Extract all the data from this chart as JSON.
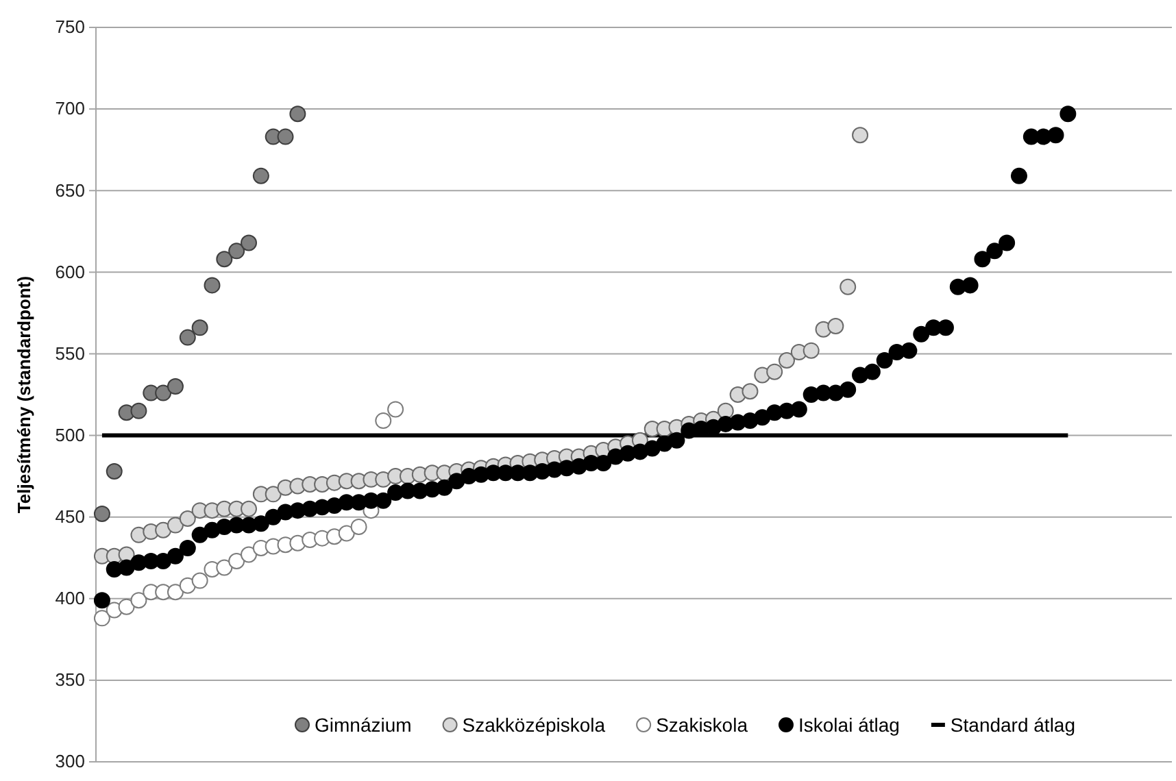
{
  "chart_data": {
    "type": "scatter",
    "ylabel": "Teljesítmény (standardpont)",
    "ylim": [
      300,
      750
    ],
    "yticks": [
      300,
      350,
      400,
      450,
      500,
      550,
      600,
      650,
      700,
      750
    ],
    "grid": "y",
    "legend": "bottom",
    "marker": "circle",
    "categories": [
      null,
      null,
      null,
      null,
      null,
      null,
      null,
      null,
      null,
      null,
      null,
      null,
      null,
      null,
      null,
      null,
      null,
      null,
      null,
      null,
      null,
      null,
      null,
      null,
      null,
      null,
      null,
      null,
      null,
      null,
      null,
      null,
      null,
      null,
      null,
      null,
      null,
      null,
      null,
      null,
      null,
      null,
      null,
      null,
      null,
      null,
      null,
      null,
      null,
      null,
      null,
      null,
      null,
      null,
      null,
      null,
      null,
      null,
      null,
      null,
      null,
      null,
      null,
      null,
      null,
      null,
      null,
      null,
      null,
      null,
      null,
      null,
      null,
      null,
      null,
      null,
      null,
      null,
      null,
      null,
      null,
      null,
      null,
      null,
      null,
      null,
      null,
      null
    ],
    "series": [
      {
        "name": "Gimnázium",
        "color": "#808080",
        "values": [
          452,
          478,
          514,
          515,
          526,
          526,
          530,
          560,
          566,
          592,
          608,
          613,
          618,
          659,
          683,
          683,
          697,
          null,
          null,
          null,
          null,
          null,
          null,
          null,
          null,
          null,
          null,
          null,
          null,
          null,
          null,
          null,
          null,
          null,
          null,
          null,
          null,
          null,
          null,
          null,
          null,
          null,
          null,
          null,
          null,
          null,
          null,
          null,
          null,
          null,
          null,
          null,
          null,
          null,
          null,
          null,
          null,
          null,
          null,
          null,
          null,
          null,
          null,
          null,
          null,
          null,
          null,
          null,
          null,
          null,
          null,
          null,
          null,
          null,
          null,
          null,
          null,
          null,
          null,
          null,
          null,
          null,
          null,
          null,
          null,
          null,
          null,
          null
        ]
      },
      {
        "name": "Szakközépiskola",
        "color": "#d9d9d9",
        "values": [
          426,
          426,
          427,
          439,
          441,
          442,
          445,
          449,
          454,
          454,
          455,
          455,
          455,
          464,
          464,
          468,
          469,
          470,
          470,
          471,
          472,
          472,
          473,
          473,
          475,
          475,
          476,
          477,
          477,
          478,
          479,
          480,
          481,
          482,
          483,
          484,
          485,
          486,
          487,
          487,
          489,
          491,
          493,
          495,
          497,
          504,
          504,
          505,
          507,
          509,
          510,
          515,
          525,
          527,
          537,
          539,
          546,
          551,
          552,
          565,
          567,
          591,
          684,
          null,
          null,
          null,
          null,
          null,
          null,
          null,
          null,
          null,
          null,
          null,
          null,
          null,
          null,
          null,
          null,
          null,
          null,
          null,
          null,
          null,
          null,
          null,
          null,
          null
        ]
      },
      {
        "name": "Szakiskola",
        "color": "#ffffff",
        "values": [
          388,
          393,
          395,
          399,
          404,
          404,
          404,
          408,
          411,
          418,
          419,
          423,
          427,
          431,
          432,
          433,
          434,
          436,
          437,
          438,
          440,
          444,
          454,
          509,
          516,
          null,
          null,
          null,
          null,
          null,
          null,
          null,
          null,
          null,
          null,
          null,
          null,
          null,
          null,
          null,
          null,
          null,
          null,
          null,
          null,
          null,
          null,
          null,
          null,
          null,
          null,
          null,
          null,
          null,
          null,
          null,
          null,
          null,
          null,
          null,
          null,
          null,
          null,
          null,
          null,
          null,
          null,
          null,
          null,
          null,
          null,
          null,
          null,
          null,
          null,
          null,
          null,
          null,
          null,
          null,
          null,
          null,
          null,
          null,
          null,
          null,
          null,
          null
        ]
      },
      {
        "name": "Iskolai átlag",
        "color": "#000000",
        "values": [
          399,
          418,
          419,
          422,
          423,
          423,
          426,
          431,
          439,
          442,
          444,
          445,
          445,
          446,
          450,
          453,
          454,
          455,
          456,
          457,
          459,
          459,
          460,
          460,
          465,
          466,
          466,
          467,
          468,
          472,
          475,
          476,
          477,
          477,
          477,
          477,
          478,
          479,
          480,
          481,
          483,
          483,
          487,
          489,
          490,
          492,
          495,
          497,
          503,
          504,
          505,
          507,
          508,
          509,
          511,
          514,
          515,
          516,
          525,
          526,
          526,
          528,
          537,
          539,
          546,
          551,
          552,
          562,
          566,
          566,
          591,
          592,
          608,
          613,
          618,
          659,
          683,
          683,
          684,
          697,
          null,
          null,
          null,
          null,
          null,
          null,
          null,
          null
        ]
      },
      {
        "name": "Standard átlag",
        "type": "line",
        "marker": "none",
        "line_style": "solid",
        "color": "#000000",
        "values": [
          500,
          500,
          500,
          500,
          500,
          500,
          500,
          500,
          500,
          500,
          500,
          500,
          500,
          500,
          500,
          500,
          500,
          500,
          500,
          500,
          500,
          500,
          500,
          500,
          500,
          500,
          500,
          500,
          500,
          500,
          500,
          500,
          500,
          500,
          500,
          500,
          500,
          500,
          500,
          500,
          500,
          500,
          500,
          500,
          500,
          500,
          500,
          500,
          500,
          500,
          500,
          500,
          500,
          500,
          500,
          500,
          500,
          500,
          500,
          500,
          500,
          500,
          500,
          500,
          500,
          500,
          500,
          500,
          500,
          500,
          500,
          500,
          500,
          500,
          500,
          500,
          500,
          500,
          500,
          500,
          null,
          null,
          null,
          null,
          null,
          null,
          null,
          null
        ]
      }
    ]
  }
}
